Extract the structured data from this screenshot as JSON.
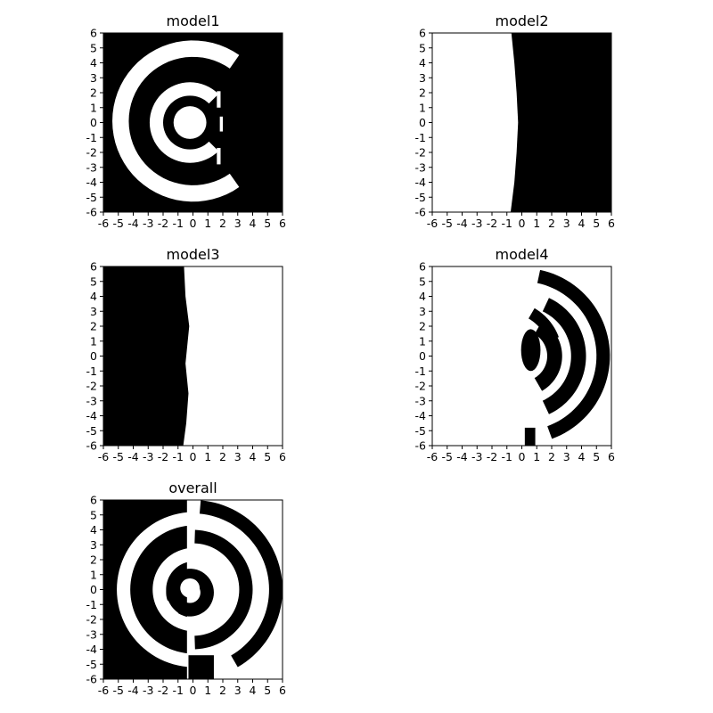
{
  "chart_data": [
    {
      "type": "heatmap",
      "title": "model1",
      "xlabel": "",
      "ylabel": "",
      "xlim": [
        -6,
        6
      ],
      "ylim": [
        -6,
        6
      ],
      "xticks": [
        -6,
        -5,
        -4,
        -3,
        -2,
        -1,
        0,
        1,
        2,
        3,
        4,
        5,
        6
      ],
      "yticks": [
        -6,
        -5,
        -4,
        -3,
        -2,
        -1,
        0,
        1,
        2,
        3,
        4,
        5,
        6
      ],
      "colormap": {
        "0": "#000000",
        "1": "#ffffff"
      },
      "background_value": 0,
      "regions": [
        {
          "shape": "disk",
          "value": 1,
          "center": [
            -0.2,
            0
          ],
          "r": 1.1
        },
        {
          "shape": "arc",
          "value": 1,
          "center": [
            -0.2,
            0
          ],
          "r_inner": 1.8,
          "r_outer": 2.7,
          "theta_from": 45,
          "theta_to": 315
        },
        {
          "shape": "arc",
          "value": 1,
          "center": [
            0.0,
            0.1
          ],
          "r_inner": 4.3,
          "r_outer": 5.4,
          "theta_from": 55,
          "theta_to": 305
        },
        {
          "shape": "rect",
          "value": 1,
          "x0": 1.6,
          "x1": 1.85,
          "y0": 1.0,
          "y1": 2.1
        },
        {
          "shape": "rect",
          "value": 1,
          "x0": 1.8,
          "x1": 2.0,
          "y0": -0.6,
          "y1": 0.4
        },
        {
          "shape": "rect",
          "value": 1,
          "x0": 1.6,
          "x1": 1.85,
          "y0": -2.8,
          "y1": -1.7
        }
      ]
    },
    {
      "type": "heatmap",
      "title": "model2",
      "xlabel": "",
      "ylabel": "",
      "xlim": [
        -6,
        6
      ],
      "ylim": [
        -6,
        6
      ],
      "xticks": [
        -6,
        -5,
        -4,
        -3,
        -2,
        -1,
        0,
        1,
        2,
        3,
        4,
        5,
        6
      ],
      "yticks": [
        -6,
        -5,
        -4,
        -3,
        -2,
        -1,
        0,
        1,
        2,
        3,
        4,
        5,
        6
      ],
      "colormap": {
        "0": "#000000",
        "1": "#ffffff"
      },
      "background_value": 0,
      "boundary": {
        "left_value": 1,
        "right_value": 0,
        "points": [
          [
            -0.7,
            6
          ],
          [
            -0.5,
            4
          ],
          [
            -0.35,
            2
          ],
          [
            -0.25,
            0
          ],
          [
            -0.35,
            -2
          ],
          [
            -0.5,
            -4
          ],
          [
            -0.75,
            -6
          ]
        ]
      }
    },
    {
      "type": "heatmap",
      "title": "model3",
      "xlabel": "",
      "ylabel": "",
      "xlim": [
        -6,
        6
      ],
      "ylim": [
        -6,
        6
      ],
      "xticks": [
        -6,
        -5,
        -4,
        -3,
        -2,
        -1,
        0,
        1,
        2,
        3,
        4,
        5,
        6
      ],
      "yticks": [
        -6,
        -5,
        -4,
        -3,
        -2,
        -1,
        0,
        1,
        2,
        3,
        4,
        5,
        6
      ],
      "colormap": {
        "0": "#000000",
        "1": "#ffffff"
      },
      "background_value": 1,
      "boundary": {
        "left_value": 0,
        "right_value": 1,
        "points": [
          [
            -0.6,
            6
          ],
          [
            -0.5,
            4
          ],
          [
            -0.25,
            2
          ],
          [
            -0.5,
            -0.5
          ],
          [
            -0.3,
            -2.5
          ],
          [
            -0.45,
            -4.5
          ],
          [
            -0.65,
            -6
          ]
        ]
      }
    },
    {
      "type": "heatmap",
      "title": "model4",
      "xlabel": "",
      "ylabel": "",
      "xlim": [
        -6,
        6
      ],
      "ylim": [
        -6,
        6
      ],
      "xticks": [
        -6,
        -5,
        -4,
        -3,
        -2,
        -1,
        0,
        1,
        2,
        3,
        4,
        5,
        6
      ],
      "yticks": [
        -6,
        -5,
        -4,
        -3,
        -2,
        -1,
        0,
        1,
        2,
        3,
        4,
        5,
        6
      ],
      "colormap": {
        "0": "#000000",
        "1": "#ffffff"
      },
      "background_value": 1,
      "regions": [
        {
          "shape": "arc",
          "value": 0,
          "center": [
            0.0,
            0.0
          ],
          "r_inner": 3.3,
          "r_outer": 4.3,
          "theta_from": -65,
          "theta_to": 65
        },
        {
          "shape": "arc",
          "value": 0,
          "center": [
            -1.0,
            0.0
          ],
          "r_inner": 2.9,
          "r_outer": 3.7,
          "theta_from": 20,
          "theta_to": 60
        },
        {
          "shape": "arc",
          "value": 0,
          "center": [
            0.0,
            0.0
          ],
          "r_inner": 1.7,
          "r_outer": 2.7,
          "theta_from": -60,
          "theta_to": 60
        },
        {
          "shape": "arc",
          "value": 0,
          "center": [
            0.0,
            0.0
          ],
          "r_inner": 5.0,
          "r_outer": 5.9,
          "theta_from": -70,
          "theta_to": 78
        },
        {
          "shape": "ellipse",
          "value": 0,
          "center": [
            0.6,
            0.4
          ],
          "rx": 0.65,
          "ry": 1.4
        },
        {
          "shape": "rect",
          "value": 0,
          "x0": 0.2,
          "x1": 0.9,
          "y0": -6,
          "y1": -4.8
        }
      ]
    },
    {
      "type": "heatmap",
      "title": "overall",
      "xlabel": "",
      "ylabel": "",
      "xlim": [
        -6,
        6
      ],
      "ylim": [
        -6,
        6
      ],
      "xticks": [
        -6,
        -5,
        -4,
        -3,
        -2,
        -1,
        0,
        1,
        2,
        3,
        4,
        5,
        6
      ],
      "yticks": [
        -6,
        -5,
        -4,
        -3,
        -2,
        -1,
        0,
        1,
        2,
        3,
        4,
        5,
        6
      ],
      "colormap": {
        "0": "#000000",
        "1": "#ffffff"
      },
      "background_value": 1,
      "regions": [
        {
          "shape": "rect",
          "value": 0,
          "x0": -6,
          "x1": -0.4,
          "y0": -6,
          "y1": 6
        },
        {
          "shape": "arc",
          "value": 1,
          "center": [
            0.1,
            0.0
          ],
          "r_inner": 4.3,
          "r_outer": 5.2,
          "theta_from": 95,
          "theta_to": 265
        },
        {
          "shape": "arc",
          "value": 1,
          "center": [
            0.1,
            0.0
          ],
          "r_inner": 1.9,
          "r_outer": 2.8,
          "theta_from": 95,
          "theta_to": 265
        },
        {
          "shape": "arc",
          "value": 0,
          "center": [
            0.0,
            0.0
          ],
          "r_inner": 3.1,
          "r_outer": 4.0,
          "theta_from": -88,
          "theta_to": 88
        },
        {
          "shape": "arc",
          "value": 0,
          "center": [
            0.0,
            0.0
          ],
          "r_inner": 5.1,
          "r_outer": 6.0,
          "theta_from": -60,
          "theta_to": 85
        },
        {
          "shape": "arc",
          "value": 0,
          "center": [
            -0.2,
            -0.2
          ],
          "r_inner": 0.7,
          "r_outer": 1.6,
          "theta_from": -120,
          "theta_to": 200
        },
        {
          "shape": "disk",
          "value": 1,
          "center": [
            -0.2,
            0.1
          ],
          "r": 0.65
        },
        {
          "shape": "rect",
          "value": 0,
          "x0": -0.3,
          "x1": 1.4,
          "y0": -6,
          "y1": -4.4
        }
      ]
    }
  ]
}
